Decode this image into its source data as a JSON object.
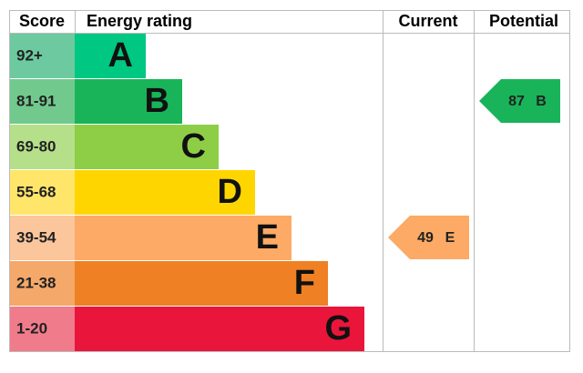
{
  "header": {
    "score": "Score",
    "rating": "Energy rating",
    "current": "Current",
    "potential": "Potential"
  },
  "bands": [
    {
      "score": "92+",
      "letter": "A",
      "color": "#00c781",
      "score_color": "#6dcaa0"
    },
    {
      "score": "81-91",
      "letter": "B",
      "color": "#19b459",
      "score_color": "#72c98d"
    },
    {
      "score": "69-80",
      "letter": "C",
      "color": "#8dce46",
      "score_color": "#b5df89"
    },
    {
      "score": "55-68",
      "letter": "D",
      "color": "#ffd500",
      "score_color": "#ffe66b"
    },
    {
      "score": "39-54",
      "letter": "E",
      "color": "#fcaa65",
      "score_color": "#fcc69c"
    },
    {
      "score": "21-38",
      "letter": "F",
      "color": "#ef8023",
      "score_color": "#f4a86a"
    },
    {
      "score": "1-20",
      "letter": "G",
      "color": "#e9153b",
      "score_color": "#f07b8b"
    }
  ],
  "current": {
    "value": 49,
    "letter": "E"
  },
  "potential": {
    "value": 87,
    "letter": "B"
  }
}
